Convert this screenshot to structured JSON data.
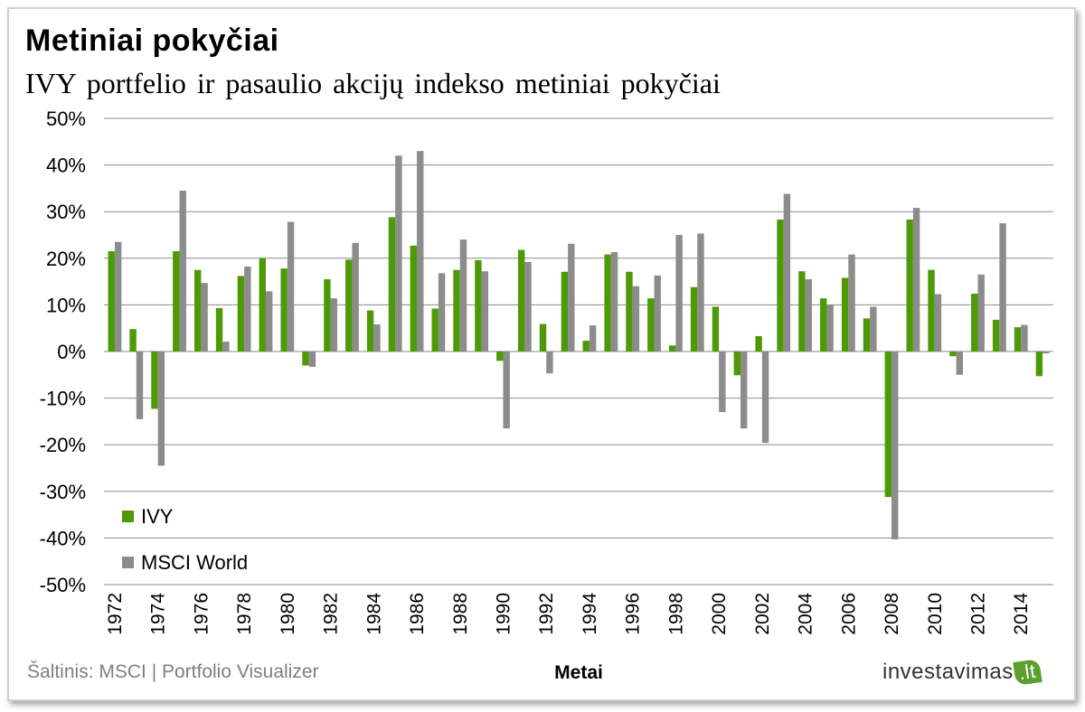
{
  "chart_data": {
    "type": "bar",
    "title": "Metiniai pokyčiai",
    "subtitle": "IVY portfelio ir pasaulio akcijų indekso metiniai pokyčiai",
    "xlabel": "Metai",
    "ylabel": "",
    "ylim": [
      -50,
      50
    ],
    "yticks": [
      "50%",
      "40%",
      "30%",
      "20%",
      "10%",
      "0%",
      "-10%",
      "-20%",
      "-30%",
      "-40%",
      "-50%"
    ],
    "ytick_values": [
      50,
      40,
      30,
      20,
      10,
      0,
      -10,
      -20,
      -30,
      -40,
      -50
    ],
    "grid": true,
    "legend_position": "bottom-left",
    "categories": [
      1972,
      1973,
      1974,
      1975,
      1976,
      1977,
      1978,
      1979,
      1980,
      1981,
      1982,
      1983,
      1984,
      1985,
      1986,
      1987,
      1988,
      1989,
      1990,
      1991,
      1992,
      1993,
      1994,
      1995,
      1996,
      1997,
      1998,
      1999,
      2000,
      2001,
      2002,
      2003,
      2004,
      2005,
      2006,
      2007,
      2008,
      2009,
      2010,
      2011,
      2012,
      2013,
      2014,
      2015
    ],
    "xtick_labels": [
      "1972",
      "1974",
      "1976",
      "1978",
      "1980",
      "1982",
      "1984",
      "1986",
      "1988",
      "1990",
      "1992",
      "1994",
      "1996",
      "1998",
      "2000",
      "2002",
      "2004",
      "2006",
      "2008",
      "2010",
      "2012",
      "2014"
    ],
    "series": [
      {
        "name": "IVY",
        "color": "#4e9a06",
        "values": [
          21.5,
          4.8,
          -12.3,
          21.5,
          17.5,
          9.3,
          16.2,
          20,
          17.8,
          -3,
          15.5,
          19.7,
          8.8,
          28.8,
          22.7,
          9.2,
          17.5,
          19.6,
          -2,
          21.8,
          5.9,
          17.1,
          2.3,
          20.8,
          17.1,
          11.4,
          1.3,
          13.8,
          9.6,
          -5.1,
          3.3,
          28.3,
          17.2,
          11.4,
          15.8,
          7.1,
          -31.2,
          28.3,
          17.5,
          -1,
          12.4,
          6.8,
          5.2,
          -5.3
        ]
      },
      {
        "name": "MSCI World",
        "color": "#8c8c8c",
        "values": [
          23.5,
          -14.5,
          -24.5,
          34.5,
          14.7,
          2.1,
          18.2,
          12.9,
          27.8,
          -3.3,
          11.4,
          23.3,
          5.8,
          42,
          43,
          16.8,
          24,
          17.2,
          -16.5,
          19.2,
          -4.7,
          23.1,
          5.6,
          21.3,
          14,
          16.3,
          25,
          25.3,
          -13,
          -16.5,
          -19.6,
          33.8,
          15.5,
          10,
          20.8,
          9.6,
          -40.3,
          30.8,
          12.3,
          -5,
          16.5,
          27.5,
          5.7,
          -0.4
        ]
      }
    ],
    "source": "Šaltinis: MSCI | Portfolio Visualizer",
    "brand": "investavimas",
    "brand_tld": ".lt"
  }
}
